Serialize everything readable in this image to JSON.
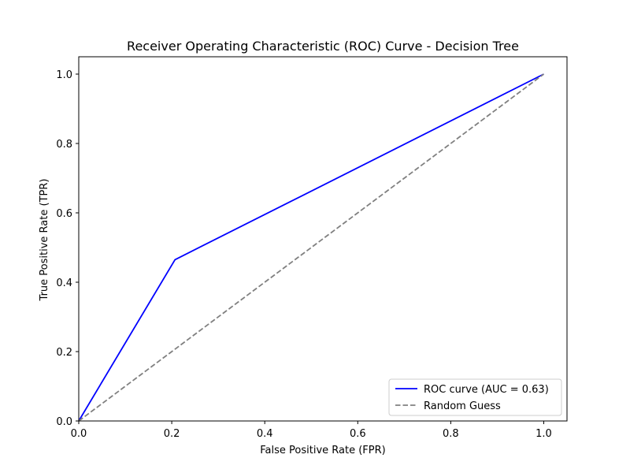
{
  "chart_data": {
    "type": "line",
    "title": "Receiver Operating Characteristic (ROC) Curve - Decision Tree",
    "xlabel": "False Positive Rate (FPR)",
    "ylabel": "True Positive Rate (TPR)",
    "xlim": [
      0.0,
      1.05
    ],
    "ylim": [
      0.0,
      1.05
    ],
    "x_ticks": [
      0.0,
      0.2,
      0.4,
      0.6,
      0.8,
      1.0
    ],
    "x_tick_labels": [
      "0.0",
      "0.2",
      "0.4",
      "0.6",
      "0.8",
      "1.0"
    ],
    "y_ticks": [
      0.0,
      0.2,
      0.4,
      0.6,
      0.8,
      1.0
    ],
    "y_tick_labels": [
      "0.0",
      "0.2",
      "0.4",
      "0.6",
      "0.8",
      "1.0"
    ],
    "grid": false,
    "legend_position": "bottom-right",
    "series": [
      {
        "name": "ROC curve (AUC = 0.63)",
        "color": "#0000ff",
        "style": "solid",
        "x": [
          0.0,
          0.207,
          1.0
        ],
        "y": [
          0.0,
          0.465,
          1.0
        ]
      },
      {
        "name": "Random Guess",
        "color": "#808080",
        "style": "dashed",
        "x": [
          0.0,
          1.0
        ],
        "y": [
          0.0,
          1.0
        ]
      }
    ]
  }
}
